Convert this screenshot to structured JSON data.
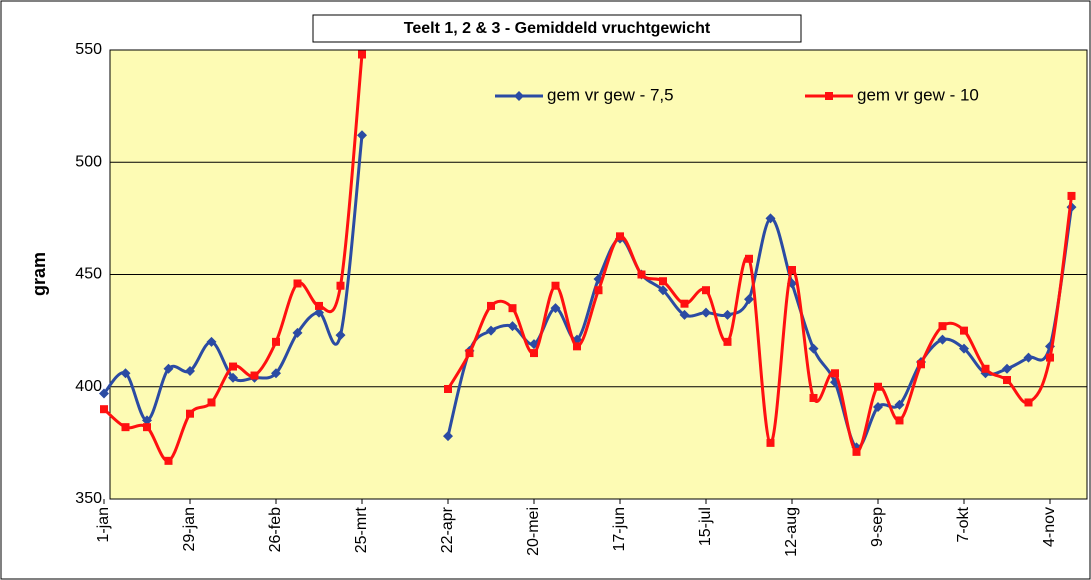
{
  "chart_data": {
    "type": "line",
    "title": "Teelt 1, 2 & 3 - Gemiddeld vruchtgewicht",
    "y_label": "gram",
    "categories": [
      "1-jan",
      null,
      null,
      null,
      "29-jan",
      null,
      null,
      null,
      "26-feb",
      null,
      null,
      null,
      "25-mrt",
      null,
      null,
      null,
      "22-apr",
      null,
      null,
      null,
      "20-mei",
      null,
      null,
      null,
      "17-jun",
      null,
      null,
      null,
      "15-jul",
      null,
      null,
      null,
      "12-aug",
      null,
      null,
      null,
      "9-sep",
      null,
      null,
      null,
      "7-okt",
      null,
      null,
      null,
      "4-nov",
      null
    ],
    "series": [
      {
        "name": "gem vr gew - 7,5",
        "color": "#2b4ba3",
        "marker": "diamond",
        "values": [
          397,
          406,
          385,
          408,
          407,
          420,
          404,
          404,
          406,
          424,
          433,
          423,
          512,
          null,
          null,
          null,
          378,
          416,
          425,
          427,
          419,
          435,
          421,
          448,
          466,
          450,
          443,
          432,
          433,
          432,
          439,
          475,
          446,
          417,
          402,
          373,
          391,
          392,
          411,
          421,
          417,
          406,
          408,
          413,
          418,
          480
        ]
      },
      {
        "name": "gem vr gew - 10",
        "color": "#ff1010",
        "marker": "square",
        "values": [
          390,
          382,
          382,
          367,
          388,
          393,
          409,
          405,
          420,
          446,
          436,
          445,
          548,
          null,
          null,
          null,
          399,
          415,
          436,
          435,
          415,
          445,
          418,
          443,
          467,
          450,
          447,
          437,
          443,
          420,
          457,
          375,
          452,
          395,
          406,
          371,
          400,
          385,
          410,
          427,
          425,
          408,
          403,
          393,
          413,
          485
        ]
      }
    ],
    "ylim": [
      350,
      550
    ],
    "yticks": [
      350,
      400,
      450,
      500,
      550
    ],
    "grid": true,
    "legend": "top",
    "background": "#fdfbb4"
  }
}
